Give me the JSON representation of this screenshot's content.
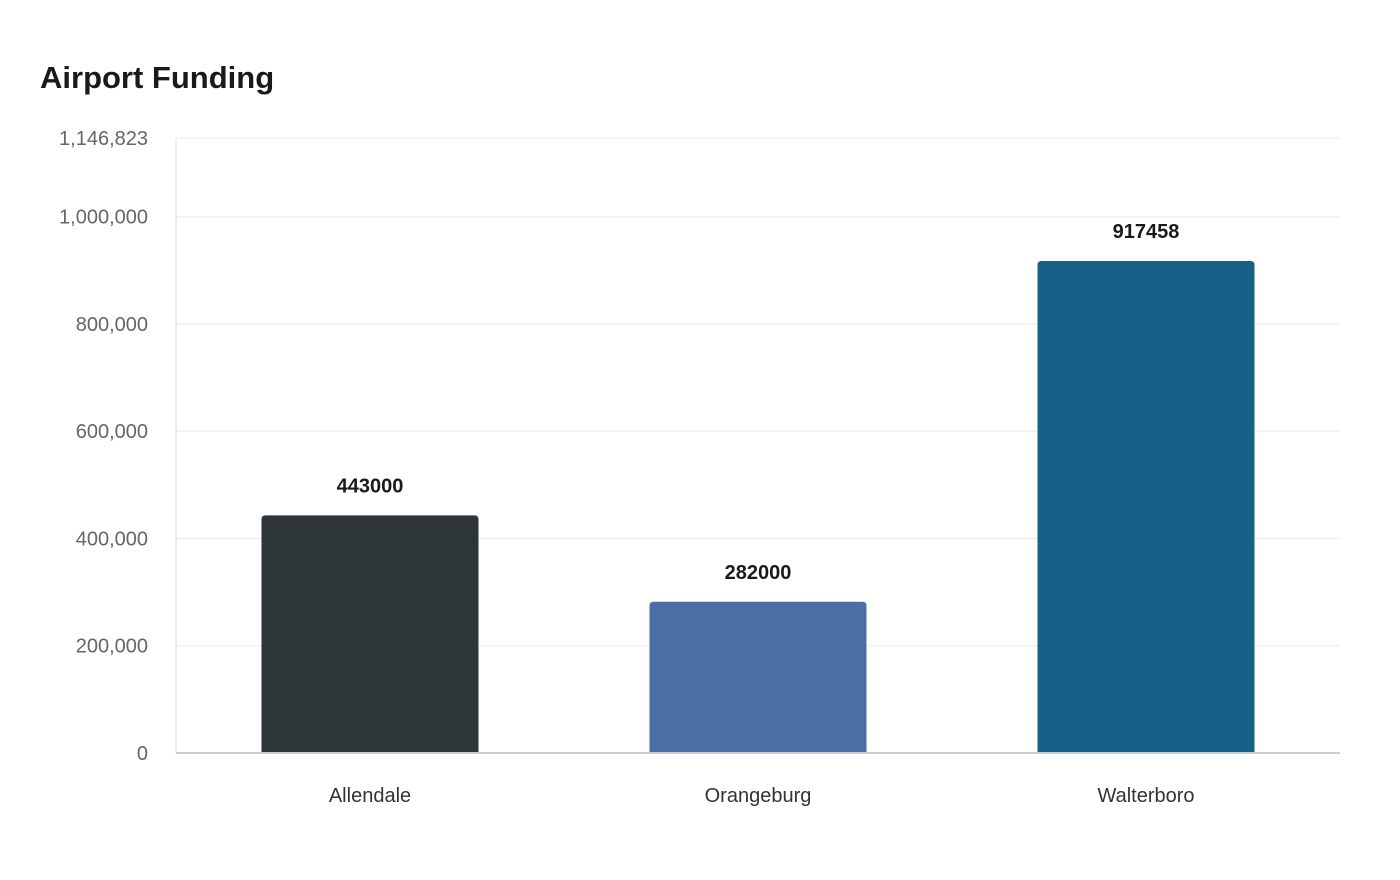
{
  "chart_data": {
    "type": "bar",
    "title": "Airport Funding",
    "xlabel": "",
    "ylabel": "",
    "categories": [
      "Allendale",
      "Orangeburg",
      "Walterboro"
    ],
    "values": [
      443000,
      282000,
      917458
    ],
    "data_labels": [
      "443000",
      "282000",
      "917458"
    ],
    "colors": [
      "#2e3538",
      "#4a6fa5",
      "#176087"
    ],
    "ylim": [
      0,
      1146823
    ],
    "yticks": [
      0,
      200000,
      400000,
      600000,
      800000,
      1000000,
      1146823
    ],
    "ytick_labels": [
      "0",
      "200,000",
      "400,000",
      "600,000",
      "800,000",
      "1,000,000",
      "1,146,823"
    ],
    "grid": true,
    "legend": "none"
  }
}
